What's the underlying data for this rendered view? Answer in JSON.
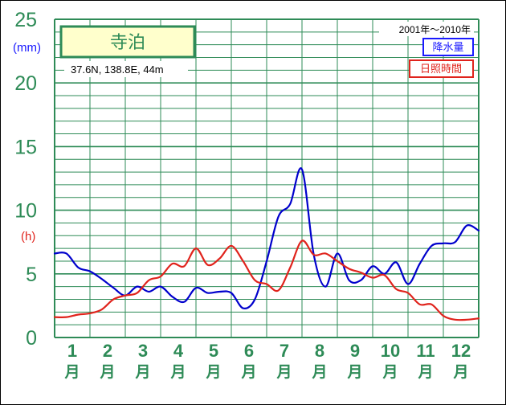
{
  "colors": {
    "grid": "#2e8b57",
    "precip": "#0000cc",
    "sunshine": "#e0231c",
    "station_box_fill": "#ffffcc"
  },
  "header": {
    "station": "寺泊",
    "coords": "37.6N,  138.8E,  44m",
    "period": "2001年～2010年"
  },
  "legend": {
    "precip": "降水量",
    "sunshine": "日照時間"
  },
  "chart_data": {
    "type": "line",
    "ylim": [
      0,
      25
    ],
    "yticks": [
      "0",
      "5",
      "10",
      "15",
      "20",
      "25"
    ],
    "yunits": [
      "(mm)",
      "(h)"
    ],
    "months": [
      "1",
      "2",
      "3",
      "4",
      "5",
      "6",
      "7",
      "8",
      "9",
      "10",
      "11",
      "12"
    ],
    "month_suffix": "月",
    "x_range": [
      0,
      36
    ],
    "series": [
      {
        "name": "降水量",
        "key": "precip",
        "x": [
          0,
          1,
          2,
          3,
          4,
          5,
          6,
          7,
          8,
          9,
          10,
          11,
          12,
          13,
          14,
          15,
          16,
          17,
          18,
          19,
          20,
          21,
          22,
          23,
          24,
          25,
          26,
          27,
          28,
          29,
          30,
          31,
          32,
          33,
          34,
          35,
          36
        ],
        "values": [
          6.6,
          6.6,
          5.5,
          5.2,
          4.6,
          3.9,
          3.3,
          4.0,
          3.6,
          4.0,
          3.2,
          2.8,
          3.9,
          3.5,
          3.6,
          3.5,
          2.3,
          3.0,
          6.0,
          9.5,
          10.5,
          13.2,
          6.5,
          4.0,
          6.6,
          4.5,
          4.5,
          5.6,
          5.0,
          5.9,
          4.2,
          5.8,
          7.2,
          7.4,
          7.5,
          8.8,
          8.4
        ]
      },
      {
        "name": "日照時間",
        "key": "sunshine",
        "x": [
          0,
          1,
          2,
          3,
          4,
          5,
          6,
          7,
          8,
          9,
          10,
          11,
          12,
          13,
          14,
          15,
          16,
          17,
          18,
          19,
          20,
          21,
          22,
          23,
          24,
          25,
          26,
          27,
          28,
          29,
          30,
          31,
          32,
          33,
          34,
          35,
          36
        ],
        "values": [
          1.6,
          1.6,
          1.8,
          1.9,
          2.2,
          3.0,
          3.3,
          3.5,
          4.5,
          4.8,
          5.8,
          5.6,
          7.0,
          5.7,
          6.2,
          7.2,
          6.0,
          4.5,
          4.2,
          3.7,
          5.5,
          7.6,
          6.5,
          6.6,
          6.0,
          5.4,
          5.1,
          4.7,
          4.9,
          3.8,
          3.5,
          2.6,
          2.6,
          1.7,
          1.4,
          1.4,
          1.5
        ]
      }
    ]
  }
}
